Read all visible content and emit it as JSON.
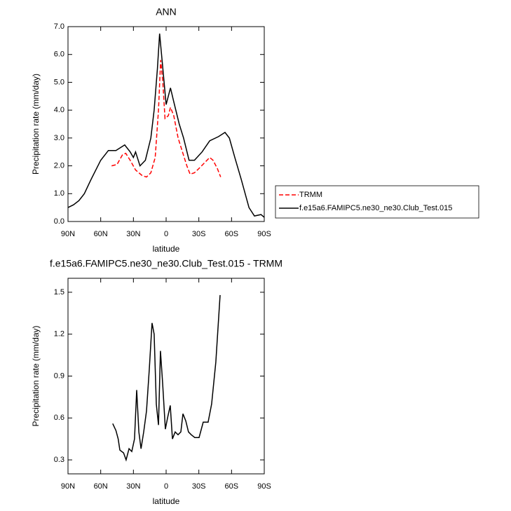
{
  "chart_data": [
    {
      "type": "line",
      "title": "ANN",
      "ylabel": "Precipitation rate (mm/day)",
      "xlabel": "latitude",
      "xlim": [
        90,
        -90
      ],
      "xticks": [
        {
          "value": 90,
          "label": "90N"
        },
        {
          "value": 60,
          "label": "60N"
        },
        {
          "value": 30,
          "label": "30N"
        },
        0,
        {
          "value": -30,
          "label": "30S"
        },
        {
          "value": -60,
          "label": "60S"
        },
        {
          "value": -90,
          "label": "90S"
        }
      ],
      "ylim": [
        0,
        7
      ],
      "yticks": [
        {
          "value": 0,
          "label": "0.0"
        },
        {
          "value": 1,
          "label": "1.0"
        },
        {
          "value": 2,
          "label": "2.0"
        },
        {
          "value": 3,
          "label": "3.0"
        },
        {
          "value": 4,
          "label": "4.0"
        },
        {
          "value": 5,
          "label": "5.0"
        },
        {
          "value": 6,
          "label": "6.0"
        },
        {
          "value": 7,
          "label": "7.0"
        }
      ],
      "legend": "right",
      "series": [
        {
          "name": "TRMM",
          "color": "#ff0000",
          "dashed": true,
          "x": [
            50,
            45,
            40,
            37,
            33,
            28,
            22,
            18,
            14,
            10,
            7,
            5,
            3,
            1,
            -2,
            -4,
            -7,
            -11,
            -15,
            -19,
            -22,
            -26,
            -30,
            -35,
            -40,
            -43,
            -47,
            -50
          ],
          "values": [
            2.0,
            2.05,
            2.4,
            2.45,
            2.2,
            1.85,
            1.65,
            1.6,
            1.75,
            2.3,
            4.0,
            5.8,
            5.0,
            3.7,
            3.8,
            4.1,
            3.8,
            3.0,
            2.5,
            2.0,
            1.7,
            1.75,
            1.9,
            2.1,
            2.3,
            2.2,
            1.9,
            1.6
          ]
        },
        {
          "name": "f.e15a6.FAMIPC5.ne30_ne30.Club_Test.015",
          "color": "#000000",
          "dashed": false,
          "x": [
            90,
            85,
            80,
            75,
            69,
            60,
            53,
            46,
            38,
            33,
            30,
            28,
            24,
            19,
            14,
            11,
            8,
            6,
            3,
            0,
            -4,
            -7,
            -12,
            -16,
            -21,
            -26,
            -33,
            -40,
            -48,
            -54,
            -58,
            -63,
            -69,
            -76,
            -81,
            -87,
            -90
          ],
          "values": [
            0.5,
            0.6,
            0.75,
            1.0,
            1.5,
            2.2,
            2.55,
            2.55,
            2.75,
            2.5,
            2.3,
            2.5,
            2.0,
            2.2,
            3.0,
            4.0,
            5.5,
            6.75,
            5.5,
            4.2,
            4.8,
            4.3,
            3.5,
            3.0,
            2.2,
            2.2,
            2.5,
            2.9,
            3.05,
            3.2,
            3.0,
            2.3,
            1.5,
            0.5,
            0.2,
            0.25,
            0.15
          ]
        }
      ]
    },
    {
      "type": "line",
      "title": "f.e15a6.FAMIPC5.ne30_ne30.Club_Test.015 - TRMM",
      "ylabel": "Precipitation rate (mm/day)",
      "xlabel": "latitude",
      "xlim": [
        90,
        -90
      ],
      "xticks": [
        {
          "value": 90,
          "label": "90N"
        },
        {
          "value": 60,
          "label": "60N"
        },
        {
          "value": 30,
          "label": "30N"
        },
        0,
        {
          "value": -30,
          "label": "30S"
        },
        {
          "value": -60,
          "label": "60S"
        },
        {
          "value": -90,
          "label": "90S"
        }
      ],
      "ylim": [
        0.2,
        1.6
      ],
      "yticks": [
        0.3,
        0.6,
        0.9,
        1.2,
        1.5
      ],
      "series": [
        {
          "color": "#000000",
          "dashed": false,
          "x": [
            49,
            46,
            44,
            42.4,
            39,
            36.7,
            34,
            31.5,
            29,
            27,
            25,
            23,
            20.6,
            18,
            15.4,
            12.9,
            11,
            9,
            7,
            5.2,
            3.2,
            0.7,
            -1.3,
            -3.8,
            -5.8,
            -8.3,
            -10.9,
            -13.5,
            -15.4,
            -18,
            -20.5,
            -23,
            -26.3,
            -30.2,
            -34,
            -38.5,
            -41.7,
            -45.6,
            -49.5
          ],
          "values": [
            0.56,
            0.51,
            0.45,
            0.37,
            0.35,
            0.3,
            0.38,
            0.36,
            0.45,
            0.8,
            0.5,
            0.38,
            0.5,
            0.65,
            0.95,
            1.28,
            1.2,
            0.7,
            0.55,
            1.08,
            0.85,
            0.52,
            0.6,
            0.69,
            0.45,
            0.5,
            0.48,
            0.5,
            0.63,
            0.58,
            0.5,
            0.48,
            0.46,
            0.46,
            0.57,
            0.57,
            0.7,
            1.0,
            1.48
          ]
        }
      ]
    }
  ]
}
